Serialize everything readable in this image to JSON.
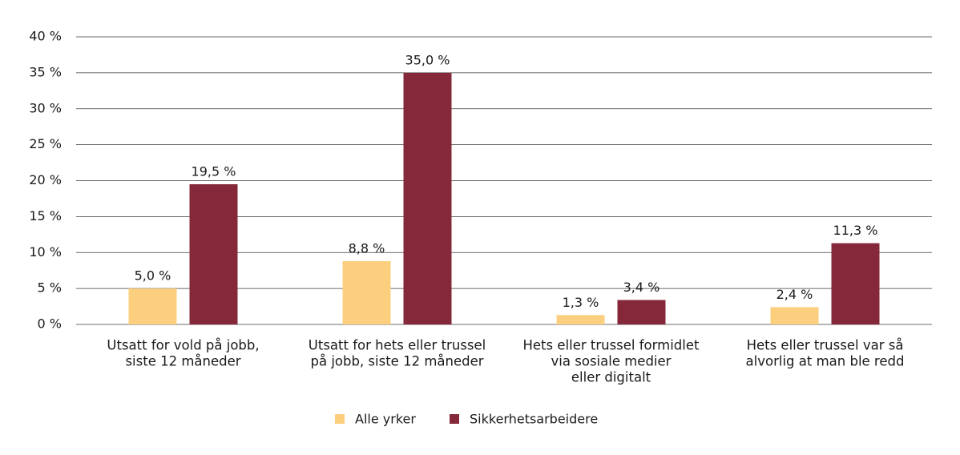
{
  "chart_data": {
    "type": "bar",
    "categories": [
      [
        "Utsatt for vold på jobb,",
        "siste 12 måneder"
      ],
      [
        "Utsatt for hets eller trussel",
        "på jobb, siste 12 måneder"
      ],
      [
        "Hets eller trussel formidlet",
        "via sosiale medier",
        "eller digitalt"
      ],
      [
        "Hets eller trussel var så",
        "alvorlig at man ble redd"
      ]
    ],
    "series": [
      {
        "name": "Alle yrker",
        "color": "#fccf7e",
        "values": [
          5.0,
          8.8,
          1.3,
          2.4
        ],
        "value_labels": [
          "5,0 %",
          "8,8 %",
          "1,3 %",
          "2,4 %"
        ]
      },
      {
        "name": "Sikkerhetsarbeidere",
        "color": "#85283a",
        "values": [
          19.5,
          35.0,
          3.4,
          11.3
        ],
        "value_labels": [
          "19,5 %",
          "35,0 %",
          "3,4 %",
          "11,3 %"
        ]
      }
    ],
    "ylim": [
      0,
      40
    ],
    "yticks": [
      {
        "value": 0,
        "label": "0 %"
      },
      {
        "value": 5,
        "label": "5 %"
      },
      {
        "value": 10,
        "label": "10 %"
      },
      {
        "value": 15,
        "label": "15 %"
      },
      {
        "value": 20,
        "label": "20 %"
      },
      {
        "value": 25,
        "label": "25 %"
      },
      {
        "value": 30,
        "label": "30 %"
      },
      {
        "value": 35,
        "label": "35 %"
      },
      {
        "value": 40,
        "label": "40 %"
      }
    ],
    "grid": true,
    "legend": "bottom"
  }
}
